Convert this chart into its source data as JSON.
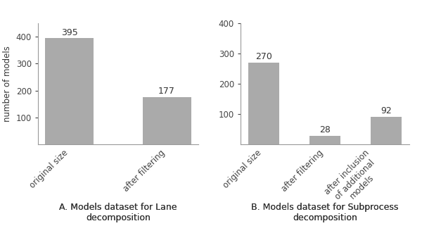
{
  "chart_a": {
    "categories": [
      "original size",
      "after filtering"
    ],
    "values": [
      395,
      177
    ],
    "ylabel": "number of models",
    "ylim": [
      0,
      450
    ],
    "yticks": [
      100,
      200,
      300,
      400
    ],
    "title_line1": "A. Models dataset for Lane",
    "title_line2": "decomposition",
    "title_bold": "A."
  },
  "chart_b": {
    "categories": [
      "original size",
      "after filtering",
      "after inclusion\nof additional\nmodels"
    ],
    "values": [
      270,
      28,
      92
    ],
    "ylim": [
      0,
      400
    ],
    "yticks": [
      100,
      200,
      300,
      400
    ],
    "title_line1": "B. Models dataset for Subprocess",
    "title_line2": "decomposition",
    "title_bold": "B."
  },
  "bar_color": "#aaaaaa",
  "bar_edge_color": "none",
  "background_color": "#ffffff",
  "label_fontsize": 8.5,
  "tick_fontsize": 8.5,
  "title_fontsize": 9,
  "annotation_fontsize": 9,
  "spine_color": "#999999"
}
